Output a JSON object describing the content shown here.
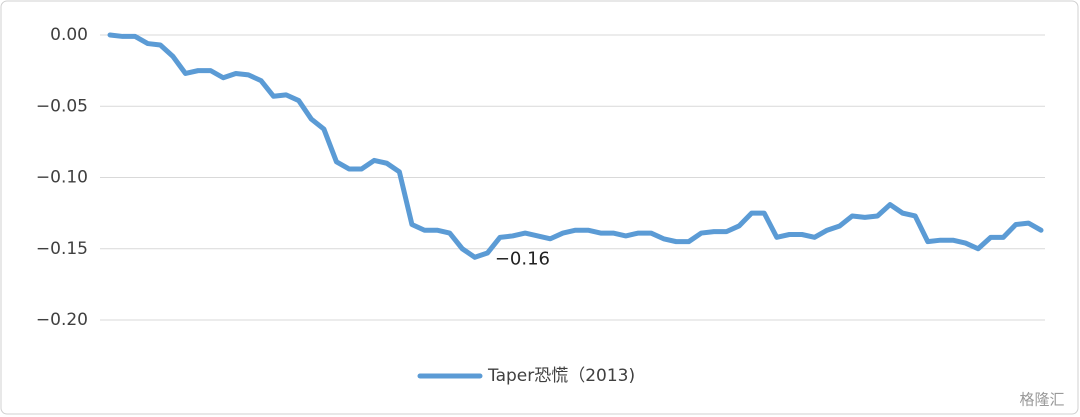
{
  "chart_data": {
    "type": "line",
    "series": [
      {
        "name": "Taper恐慌（2013)",
        "color": "#5b9bd5",
        "values": [
          0,
          -0.001,
          -0.001,
          -0.006,
          -0.007,
          -0.015,
          -0.027,
          -0.025,
          -0.025,
          -0.03,
          -0.027,
          -0.028,
          -0.032,
          -0.043,
          -0.042,
          -0.046,
          -0.059,
          -0.066,
          -0.089,
          -0.094,
          -0.094,
          -0.088,
          -0.09,
          -0.096,
          -0.133,
          -0.137,
          -0.137,
          -0.139,
          -0.15,
          -0.156,
          -0.153,
          -0.142,
          -0.141,
          -0.139,
          -0.141,
          -0.143,
          -0.139,
          -0.137,
          -0.137,
          -0.139,
          -0.139,
          -0.141,
          -0.139,
          -0.139,
          -0.143,
          -0.145,
          -0.145,
          -0.139,
          -0.138,
          -0.138,
          -0.134,
          -0.125,
          -0.125,
          -0.142,
          -0.14,
          -0.14,
          -0.142,
          -0.137,
          -0.134,
          -0.127,
          -0.128,
          -0.127,
          -0.119,
          -0.125,
          -0.127,
          -0.145,
          -0.144,
          -0.144,
          -0.146,
          -0.15,
          -0.142,
          -0.142,
          -0.133,
          -0.132,
          -0.137
        ],
        "value_labels": [
          null,
          null,
          null,
          null,
          null,
          null,
          null,
          null,
          null,
          null,
          null,
          null,
          null,
          null,
          null,
          null,
          null,
          null,
          null,
          null,
          null,
          null,
          null,
          null,
          null,
          null,
          null,
          null,
          null,
          "−0.16",
          null,
          null,
          null,
          null,
          null,
          null,
          null,
          null,
          null,
          null,
          null,
          null,
          null,
          null,
          null,
          null,
          null,
          null,
          null,
          null,
          null,
          null,
          null,
          null,
          null,
          null,
          null,
          null,
          null,
          null,
          null,
          null,
          null,
          null,
          null,
          null,
          null,
          null,
          null,
          null,
          null,
          null,
          null,
          null,
          null
        ]
      }
    ],
    "ylim": [
      -0.2,
      0
    ],
    "yticks": [
      {
        "value": 0,
        "label": "0.00"
      },
      {
        "value": -0.05,
        "label": "−0.05"
      },
      {
        "value": -0.1,
        "label": "−0.10"
      },
      {
        "value": -0.15,
        "label": "−0.15"
      },
      {
        "value": -0.2,
        "label": "−0.20"
      }
    ],
    "grid": true,
    "legend": "bottom"
  },
  "watermark": "格隆汇"
}
